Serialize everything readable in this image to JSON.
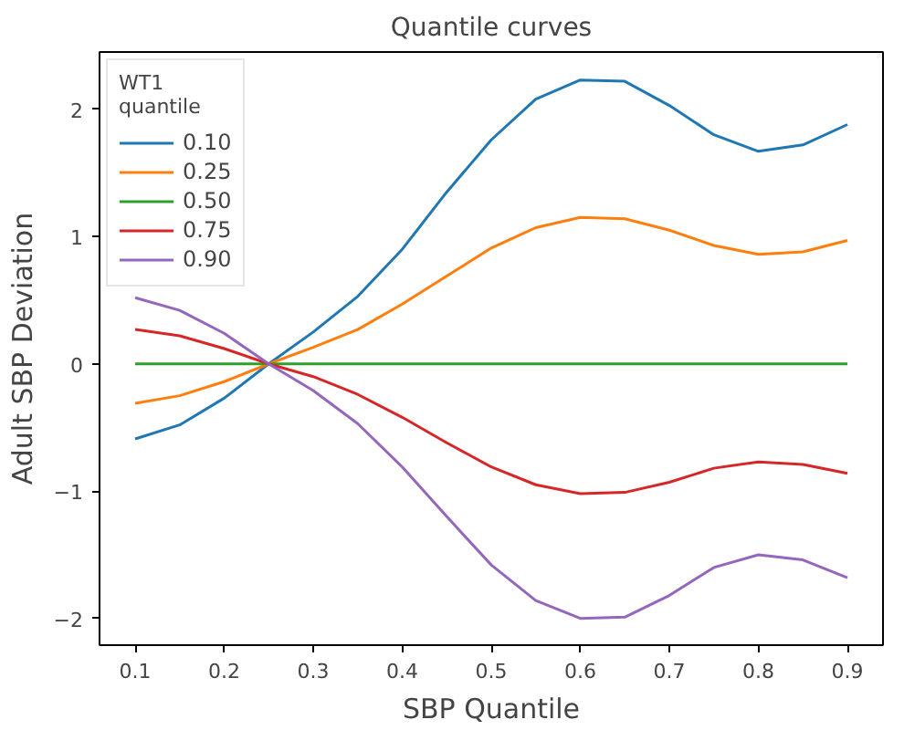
{
  "chart_data": {
    "type": "line",
    "title": "Quantile curves",
    "xlabel": "SBP Quantile",
    "ylabel": "Adult SBP Deviation",
    "legend_title": "WT1\nquantile",
    "legend": "top left",
    "grid": false,
    "marker": "none",
    "line_style": "solid",
    "x": [
      0.1,
      0.15,
      0.2,
      0.25,
      0.3,
      0.35,
      0.4,
      0.45,
      0.5,
      0.55,
      0.6,
      0.65,
      0.7,
      0.75,
      0.8,
      0.85,
      0.9
    ],
    "xlim": [
      0.06,
      0.94
    ],
    "xticks": [
      0.1,
      0.2,
      0.3,
      0.4,
      0.5,
      0.6,
      0.7,
      0.8,
      0.9
    ],
    "ylim": [
      -2.21,
      2.45
    ],
    "yticks": [
      -2,
      -1,
      0,
      1,
      2
    ],
    "series": [
      {
        "name": "0.10",
        "color": "#1f77b4",
        "values": [
          -0.59,
          -0.48,
          -0.27,
          0,
          0.25,
          0.53,
          0.9,
          1.35,
          1.76,
          2.08,
          2.23,
          2.22,
          2.03,
          1.8,
          1.67,
          1.72,
          1.88
        ]
      },
      {
        "name": "0.25",
        "color": "#ff7f0e",
        "values": [
          -0.31,
          -0.25,
          -0.14,
          0,
          0.13,
          0.27,
          0.47,
          0.69,
          0.91,
          1.07,
          1.15,
          1.14,
          1.05,
          0.93,
          0.86,
          0.88,
          0.97
        ]
      },
      {
        "name": "0.50",
        "color": "#2ca02c",
        "values": [
          0,
          0,
          0,
          0,
          0,
          0,
          0,
          0,
          0,
          0,
          0,
          0,
          0,
          0,
          0,
          0,
          0
        ]
      },
      {
        "name": "0.75",
        "color": "#d62728",
        "values": [
          0.27,
          0.22,
          0.12,
          0,
          -0.1,
          -0.24,
          -0.42,
          -0.62,
          -0.81,
          -0.95,
          -1.02,
          -1.01,
          -0.93,
          -0.82,
          -0.77,
          -0.79,
          -0.86
        ]
      },
      {
        "name": "0.90",
        "color": "#9467bd",
        "values": [
          0.52,
          0.42,
          0.24,
          0,
          -0.21,
          -0.47,
          -0.81,
          -1.2,
          -1.58,
          -1.86,
          -2.0,
          -1.99,
          -1.82,
          -1.6,
          -1.5,
          -1.54,
          -1.68
        ]
      }
    ]
  }
}
